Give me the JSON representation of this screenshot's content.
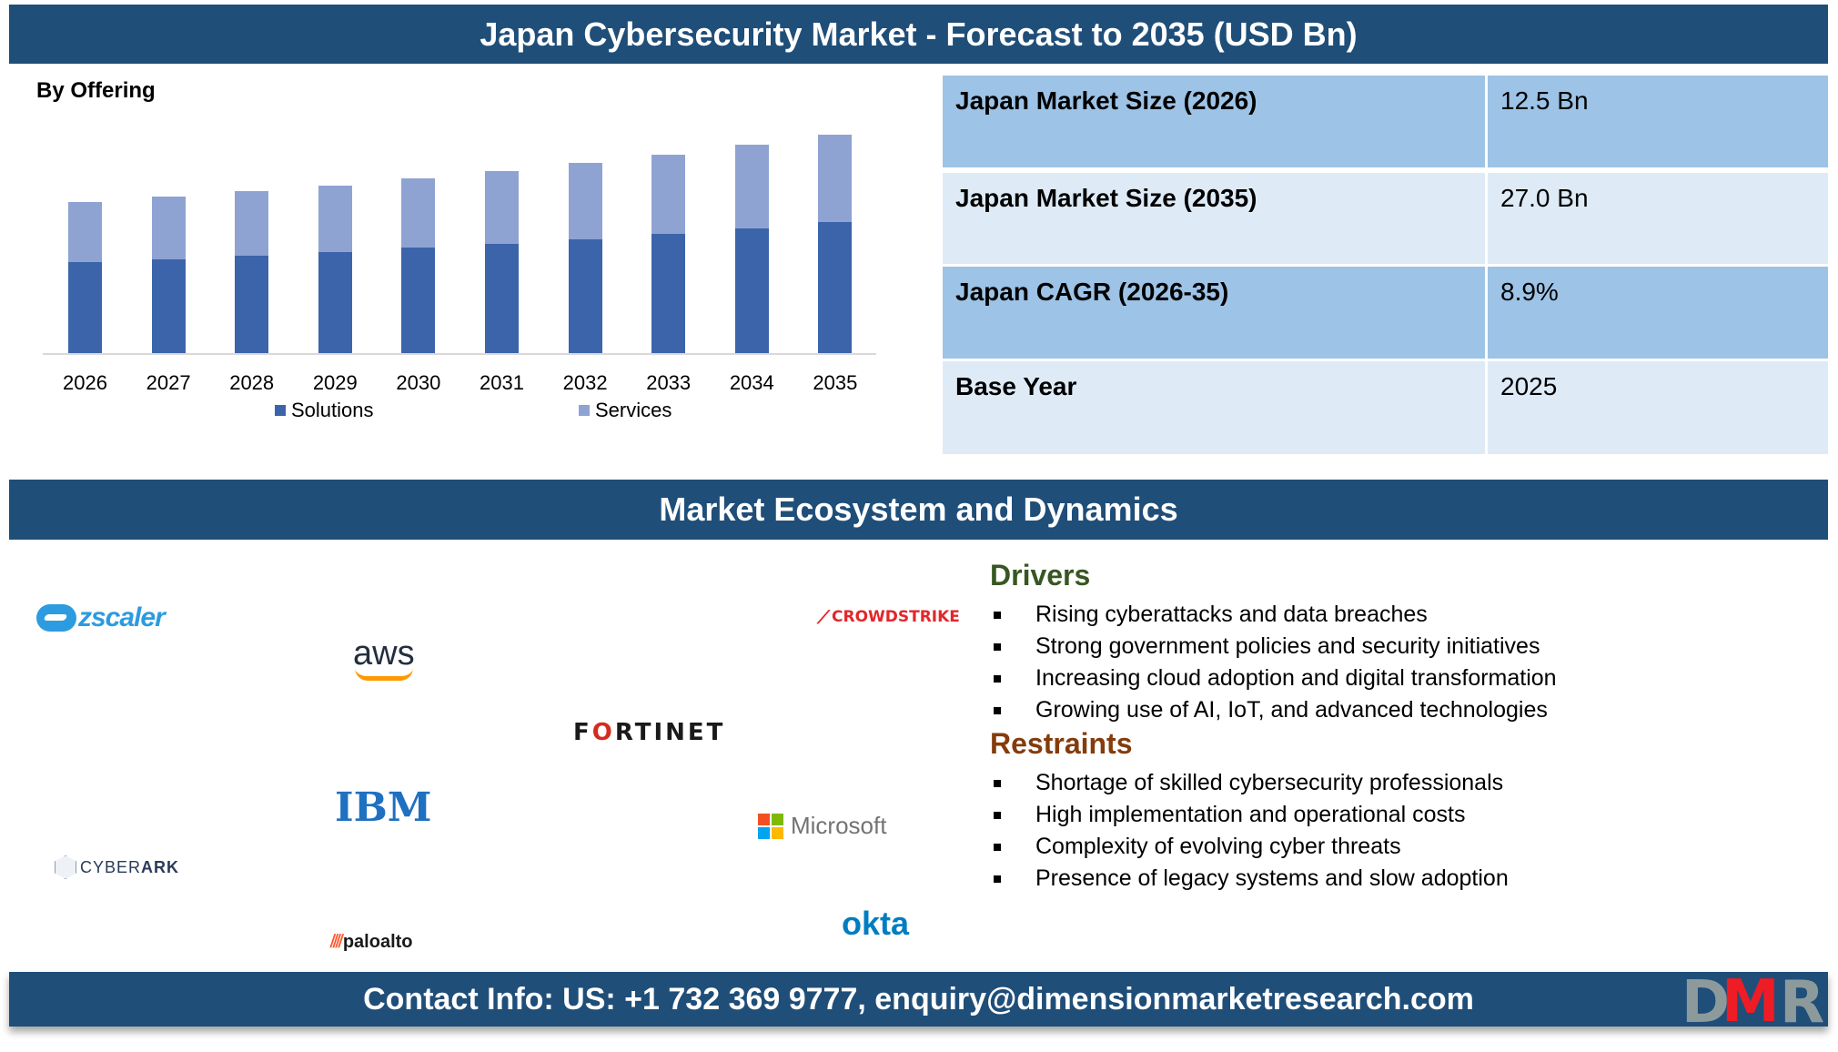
{
  "header": {
    "title": "Japan Cybersecurity Market - Forecast to 2035 (USD Bn)"
  },
  "chart_section": {
    "subtitle": "By Offering"
  },
  "chart_data": {
    "type": "bar",
    "stacked": true,
    "title": "By Offering",
    "xlabel": "",
    "ylabel": "USD Bn",
    "categories": [
      "2026",
      "2027",
      "2028",
      "2029",
      "2030",
      "2031",
      "2032",
      "2033",
      "2034",
      "2035"
    ],
    "series": [
      {
        "name": "Solutions",
        "color": "#3c64aa",
        "values": [
          7.5,
          8.2,
          8.9,
          9.7,
          10.6,
          11.5,
          12.5,
          13.6,
          14.9,
          16.2
        ]
      },
      {
        "name": "Services",
        "color": "#8fa3d3",
        "values": [
          5.0,
          5.4,
          5.9,
          6.4,
          7.0,
          7.7,
          8.4,
          9.1,
          9.9,
          10.8
        ]
      }
    ],
    "totals": [
      12.5,
      13.6,
      14.8,
      16.1,
      17.6,
      19.2,
      20.9,
      22.7,
      24.8,
      27.0
    ],
    "grid": false,
    "y_axis_visible": false,
    "legend_position": "bottom"
  },
  "legend": [
    {
      "label": "Solutions",
      "color": "#3c64aa"
    },
    {
      "label": "Services",
      "color": "#8fa3d3"
    }
  ],
  "stats": [
    {
      "label": "Japan Market Size (2026)",
      "value": "12.5 Bn"
    },
    {
      "label": "Japan Market Size (2035)",
      "value": "27.0 Bn"
    },
    {
      "label": "Japan CAGR (2026-35)",
      "value": "8.9%"
    },
    {
      "label": "Base Year",
      "value": "2025"
    }
  ],
  "ecosystem": {
    "title": "Market Ecosystem and Dynamics",
    "logos": {
      "zscaler": "zscaler",
      "aws": "aws",
      "fortinet_pre": "F",
      "fortinet_o": "O",
      "fortinet_post": "RTINET",
      "crowdstrike": "CROWDSTRIKE",
      "ibm": "IBM",
      "microsoft": "Microsoft",
      "cyberark_light": "CYBER",
      "cyberark_bold": "ARK",
      "paloalto": "paloalto",
      "okta": "okta"
    }
  },
  "drivers": {
    "title": "Drivers",
    "items": [
      "Rising cyberattacks and data breaches",
      "Strong government policies and security initiatives",
      "Increasing cloud adoption and digital transformation",
      "Growing use of AI, IoT, and advanced technologies"
    ]
  },
  "restraints": {
    "title": "Restraints",
    "items": [
      "Shortage of skilled cybersecurity professionals",
      "High implementation and operational costs",
      "Complexity of evolving cyber threats",
      "Presence of legacy systems and slow adoption"
    ]
  },
  "footer": {
    "contact": "Contact Info: US: +1 732 369 9777, enquiry@dimensionmarketresearch.com",
    "brand": {
      "d": "D",
      "m": "M",
      "r": "R"
    }
  }
}
